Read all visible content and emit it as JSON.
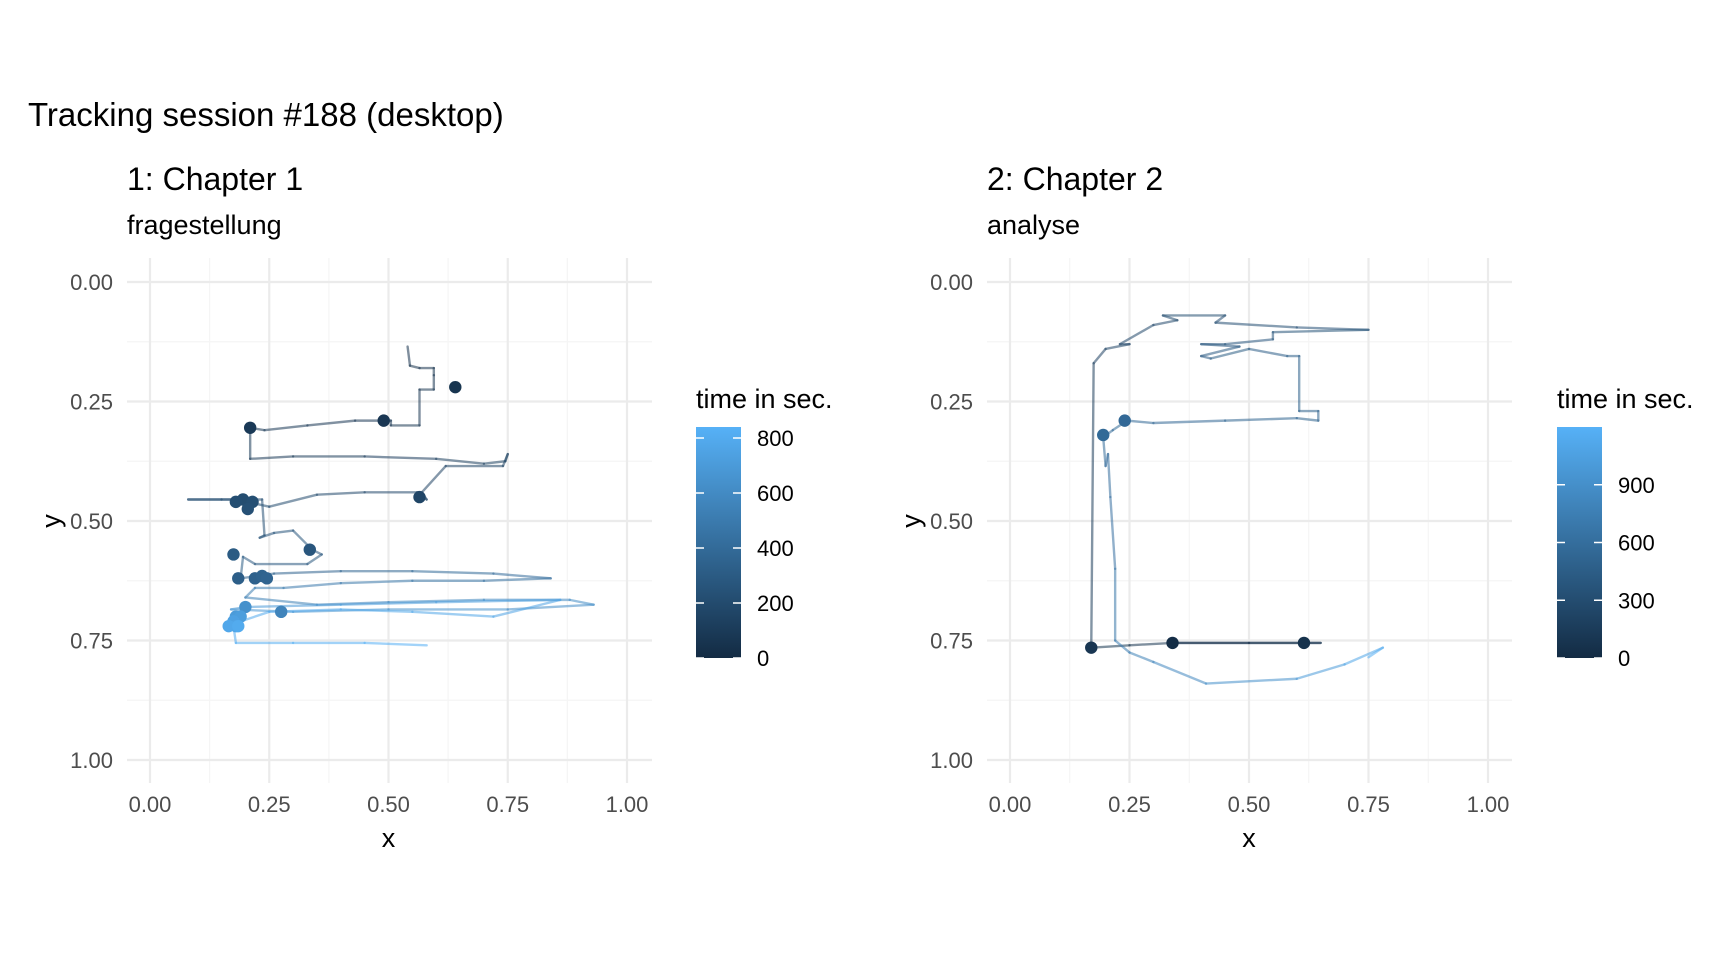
{
  "title": "Tracking session #188 (desktop)",
  "colors": {
    "low": "#132B43",
    "high": "#56B1F7",
    "grid_major": "#ebebeb",
    "grid_minor": "#f5f5f5"
  },
  "chart_data": [
    {
      "type": "line",
      "title": "1: Chapter 1",
      "subtitle": "fragestellung",
      "xlabel": "x",
      "ylabel": "y",
      "xlim": [
        0,
        1
      ],
      "ylim": [
        0,
        1
      ],
      "y_reversed": true,
      "x_ticks": [
        "0.00",
        "0.25",
        "0.50",
        "0.75",
        "1.00"
      ],
      "y_ticks": [
        "0.00",
        "0.25",
        "0.50",
        "0.75",
        "1.00"
      ],
      "grid": true,
      "legend": {
        "title": "time in sec.",
        "placement": "right",
        "min": 0,
        "max": 840,
        "ticks": [
          0,
          200,
          400,
          600,
          800
        ]
      },
      "path": [
        [
          0.54,
          0.135,
          40
        ],
        [
          0.545,
          0.175,
          45
        ],
        [
          0.565,
          0.18,
          50
        ],
        [
          0.595,
          0.18,
          55
        ],
        [
          0.595,
          0.195,
          58
        ],
        [
          0.595,
          0.225,
          60
        ],
        [
          0.565,
          0.225,
          62
        ],
        [
          0.565,
          0.3,
          65
        ],
        [
          0.505,
          0.3,
          68
        ],
        [
          0.505,
          0.29,
          70
        ],
        [
          0.43,
          0.29,
          75
        ],
        [
          0.33,
          0.3,
          80
        ],
        [
          0.24,
          0.31,
          85
        ],
        [
          0.21,
          0.305,
          90
        ],
        [
          0.21,
          0.37,
          95
        ],
        [
          0.3,
          0.365,
          100
        ],
        [
          0.45,
          0.365,
          110
        ],
        [
          0.6,
          0.37,
          120
        ],
        [
          0.7,
          0.38,
          130
        ],
        [
          0.745,
          0.375,
          140
        ],
        [
          0.75,
          0.36,
          145
        ],
        [
          0.74,
          0.385,
          150
        ],
        [
          0.62,
          0.385,
          155
        ],
        [
          0.57,
          0.44,
          160
        ],
        [
          0.58,
          0.455,
          165
        ],
        [
          0.56,
          0.44,
          170
        ],
        [
          0.45,
          0.44,
          180
        ],
        [
          0.35,
          0.445,
          190
        ],
        [
          0.25,
          0.47,
          200
        ],
        [
          0.18,
          0.455,
          210
        ],
        [
          0.08,
          0.455,
          215
        ],
        [
          0.15,
          0.455,
          220
        ],
        [
          0.235,
          0.455,
          230
        ],
        [
          0.24,
          0.53,
          240
        ],
        [
          0.23,
          0.535,
          245
        ],
        [
          0.26,
          0.525,
          250
        ],
        [
          0.3,
          0.52,
          260
        ],
        [
          0.34,
          0.56,
          270
        ],
        [
          0.36,
          0.57,
          275
        ],
        [
          0.33,
          0.59,
          280
        ],
        [
          0.22,
          0.59,
          290
        ],
        [
          0.195,
          0.575,
          300
        ],
        [
          0.19,
          0.62,
          320
        ],
        [
          0.26,
          0.61,
          340
        ],
        [
          0.4,
          0.605,
          360
        ],
        [
          0.55,
          0.605,
          380
        ],
        [
          0.72,
          0.61,
          400
        ],
        [
          0.84,
          0.62,
          420
        ],
        [
          0.7,
          0.625,
          440
        ],
        [
          0.55,
          0.625,
          460
        ],
        [
          0.4,
          0.63,
          480
        ],
        [
          0.28,
          0.64,
          500
        ],
        [
          0.22,
          0.64,
          510
        ],
        [
          0.2,
          0.66,
          520
        ],
        [
          0.35,
          0.675,
          540
        ],
        [
          0.5,
          0.67,
          560
        ],
        [
          0.7,
          0.665,
          580
        ],
        [
          0.88,
          0.665,
          600
        ],
        [
          0.93,
          0.675,
          610
        ],
        [
          0.75,
          0.685,
          620
        ],
        [
          0.5,
          0.685,
          640
        ],
        [
          0.3,
          0.69,
          660
        ],
        [
          0.17,
          0.685,
          670
        ],
        [
          0.2,
          0.68,
          680
        ],
        [
          0.4,
          0.675,
          700
        ],
        [
          0.6,
          0.67,
          720
        ],
        [
          0.86,
          0.665,
          740
        ],
        [
          0.72,
          0.7,
          760
        ],
        [
          0.55,
          0.69,
          770
        ],
        [
          0.4,
          0.685,
          780
        ],
        [
          0.25,
          0.69,
          790
        ],
        [
          0.19,
          0.71,
          800
        ],
        [
          0.175,
          0.72,
          805
        ],
        [
          0.18,
          0.755,
          810
        ],
        [
          0.3,
          0.755,
          815
        ],
        [
          0.45,
          0.755,
          820
        ],
        [
          0.58,
          0.76,
          830
        ]
      ],
      "points": [
        [
          0.64,
          0.22,
          60
        ],
        [
          0.49,
          0.29,
          70
        ],
        [
          0.21,
          0.305,
          90
        ],
        [
          0.565,
          0.45,
          165
        ],
        [
          0.195,
          0.455,
          212
        ],
        [
          0.18,
          0.46,
          218
        ],
        [
          0.215,
          0.46,
          225
        ],
        [
          0.205,
          0.475,
          235
        ],
        [
          0.335,
          0.56,
          270
        ],
        [
          0.175,
          0.57,
          300
        ],
        [
          0.185,
          0.62,
          320
        ],
        [
          0.22,
          0.62,
          340
        ],
        [
          0.235,
          0.615,
          350
        ],
        [
          0.245,
          0.62,
          360
        ],
        [
          0.275,
          0.69,
          560
        ],
        [
          0.2,
          0.68,
          640
        ],
        [
          0.18,
          0.7,
          700
        ],
        [
          0.19,
          0.7,
          720
        ],
        [
          0.175,
          0.71,
          740
        ],
        [
          0.18,
          0.72,
          760
        ],
        [
          0.165,
          0.72,
          780
        ],
        [
          0.185,
          0.72,
          800
        ]
      ]
    },
    {
      "type": "line",
      "title": "2: Chapter 2",
      "subtitle": "analyse",
      "xlabel": "x",
      "ylabel": "y",
      "xlim": [
        0,
        1
      ],
      "ylim": [
        0,
        1
      ],
      "y_reversed": true,
      "x_ticks": [
        "0.00",
        "0.25",
        "0.50",
        "0.75",
        "1.00"
      ],
      "y_ticks": [
        "0.00",
        "0.25",
        "0.50",
        "0.75",
        "1.00"
      ],
      "grid": true,
      "legend": {
        "title": "time in sec.",
        "placement": "right",
        "min": 0,
        "max": 1200,
        "ticks": [
          0,
          300,
          600,
          900
        ]
      },
      "path": [
        [
          0.34,
          0.755,
          20
        ],
        [
          0.5,
          0.755,
          40
        ],
        [
          0.62,
          0.755,
          60
        ],
        [
          0.65,
          0.755,
          65
        ],
        [
          0.34,
          0.755,
          80
        ],
        [
          0.25,
          0.76,
          90
        ],
        [
          0.17,
          0.765,
          100
        ],
        [
          0.175,
          0.17,
          200
        ],
        [
          0.2,
          0.14,
          220
        ],
        [
          0.25,
          0.13,
          240
        ],
        [
          0.23,
          0.13,
          245
        ],
        [
          0.3,
          0.09,
          260
        ],
        [
          0.35,
          0.08,
          280
        ],
        [
          0.32,
          0.07,
          290
        ],
        [
          0.45,
          0.07,
          300
        ],
        [
          0.43,
          0.085,
          310
        ],
        [
          0.6,
          0.095,
          330
        ],
        [
          0.75,
          0.1,
          350
        ],
        [
          0.55,
          0.105,
          370
        ],
        [
          0.55,
          0.12,
          380
        ],
        [
          0.45,
          0.13,
          390
        ],
        [
          0.4,
          0.13,
          400
        ],
        [
          0.48,
          0.135,
          410
        ],
        [
          0.4,
          0.155,
          420
        ],
        [
          0.42,
          0.16,
          430
        ],
        [
          0.5,
          0.14,
          440
        ],
        [
          0.58,
          0.155,
          460
        ],
        [
          0.605,
          0.155,
          470
        ],
        [
          0.605,
          0.27,
          480
        ],
        [
          0.645,
          0.27,
          485
        ],
        [
          0.645,
          0.29,
          490
        ],
        [
          0.6,
          0.285,
          495
        ],
        [
          0.45,
          0.29,
          520
        ],
        [
          0.3,
          0.295,
          540
        ],
        [
          0.245,
          0.29,
          550
        ],
        [
          0.215,
          0.31,
          560
        ],
        [
          0.195,
          0.325,
          570
        ],
        [
          0.2,
          0.385,
          580
        ],
        [
          0.205,
          0.36,
          585
        ],
        [
          0.21,
          0.45,
          600
        ],
        [
          0.22,
          0.6,
          640
        ],
        [
          0.22,
          0.75,
          700
        ],
        [
          0.25,
          0.775,
          750
        ],
        [
          0.3,
          0.795,
          800
        ],
        [
          0.41,
          0.84,
          850
        ],
        [
          0.6,
          0.83,
          950
        ],
        [
          0.7,
          0.8,
          1050
        ],
        [
          0.78,
          0.765,
          1150
        ],
        [
          0.75,
          0.785,
          1180
        ]
      ],
      "points": [
        [
          0.195,
          0.32,
          560
        ],
        [
          0.24,
          0.29,
          550
        ],
        [
          0.17,
          0.765,
          100
        ],
        [
          0.34,
          0.755,
          20
        ],
        [
          0.615,
          0.755,
          60
        ]
      ]
    }
  ]
}
